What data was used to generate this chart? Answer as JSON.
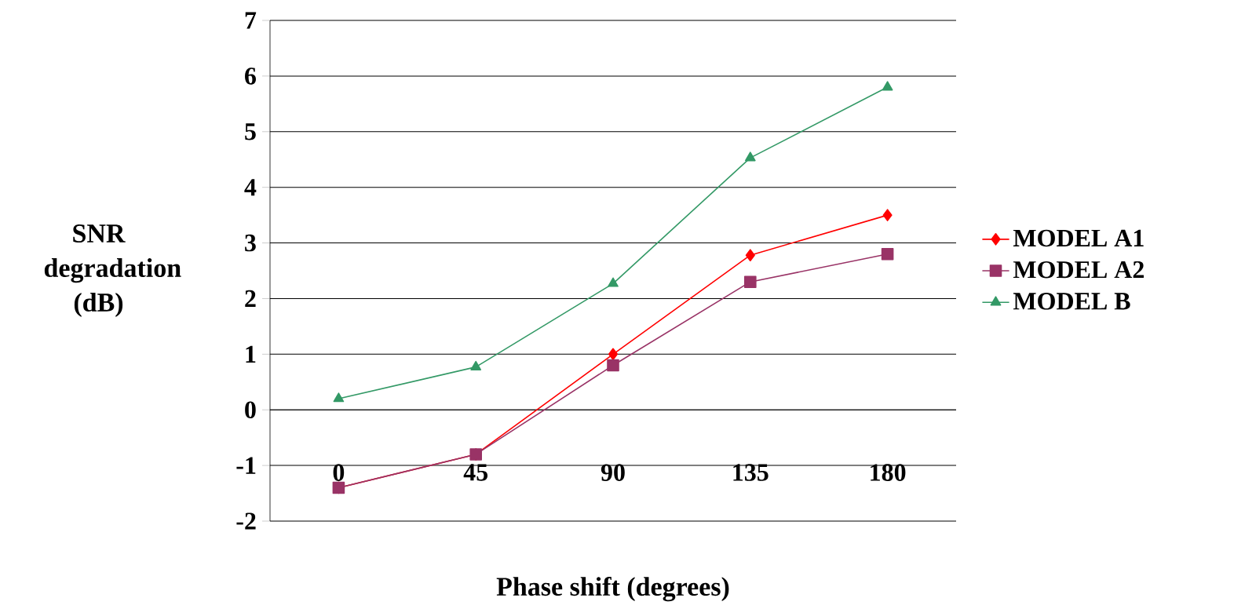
{
  "chart_data": {
    "type": "line",
    "xlabel": "Phase shift (degrees)",
    "ylabel": "SNR degradation (dB)",
    "categories": [
      "0",
      "45",
      "90",
      "135",
      "180"
    ],
    "series": [
      {
        "name": "MODEL A1",
        "color": "#ff0000",
        "marker": "diamond",
        "values": [
          -1.4,
          -0.8,
          1.0,
          2.78,
          3.5
        ]
      },
      {
        "name": "MODEL A2",
        "color": "#993366",
        "marker": "square",
        "values": [
          -1.4,
          -0.8,
          0.8,
          2.3,
          2.8
        ]
      },
      {
        "name": "MODEL B",
        "color": "#339966",
        "marker": "triangle",
        "values": [
          0.2,
          0.77,
          2.27,
          4.53,
          5.8
        ]
      }
    ],
    "ylim": [
      -2,
      7
    ],
    "yticks": [
      -2,
      -1,
      0,
      1,
      2,
      3,
      4,
      5,
      6,
      7
    ],
    "grid": "y",
    "legend": "right"
  }
}
